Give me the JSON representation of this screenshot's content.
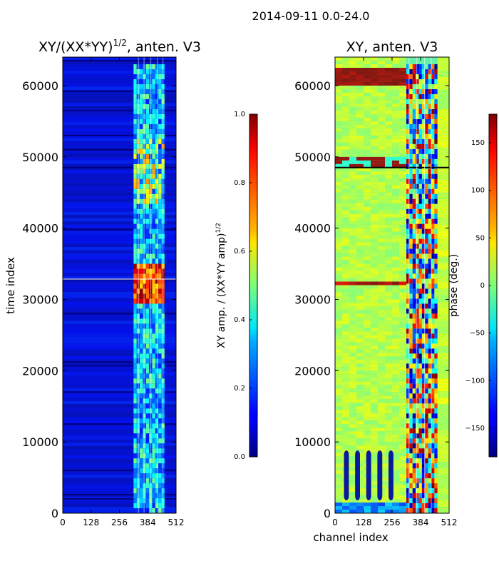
{
  "figure_title": "2014-09-11 0.0-24.0",
  "chart_data": [
    {
      "type": "heatmap",
      "title": "XY/(XX*YY)",
      "title_exponent": "1/2",
      "title_suffix": ", anten. V3",
      "xlabel": "",
      "ylabel": "time index",
      "xlim": [
        0,
        512
      ],
      "ylim": [
        0,
        64000
      ],
      "x_ticks": [
        "0",
        "128",
        "256",
        "384",
        "512"
      ],
      "y_ticks": [
        "0",
        "10000",
        "20000",
        "30000",
        "40000",
        "50000",
        "60000"
      ],
      "colormap": "jet",
      "colorbar": {
        "label": "XY amp. / (XX*YY amp)",
        "label_exponent": "1/2",
        "range": [
          0.0,
          1.0
        ],
        "ticks": [
          "0.0",
          "0.2",
          "0.4",
          "0.6",
          "0.8",
          "1.0"
        ]
      },
      "notes": "Mostly dark-blue (~0.05-0.15); bright band for channels ~320-460; hot region (~0.7-1.0) around time 29000-35000 in channels 320-460."
    },
    {
      "type": "heatmap",
      "title": "XY, anten. V3",
      "xlabel": "channel index",
      "ylabel": "",
      "xlim": [
        0,
        512
      ],
      "ylim": [
        0,
        64000
      ],
      "x_ticks": [
        "0",
        "128",
        "256",
        "384",
        "512"
      ],
      "y_ticks": [
        "0",
        "10000",
        "20000",
        "30000",
        "40000",
        "50000",
        "60000"
      ],
      "colormap": "jet",
      "colorbar": {
        "label": "phase (deg.)",
        "range": [
          -180,
          180
        ],
        "ticks": [
          "−150",
          "−100",
          "−50",
          "0",
          "50",
          "100",
          "150"
        ]
      },
      "notes": "Mostly cyan-green phase (~0 to 30 deg); wrapping phase patterns in channels 320-460; red band near time 60000-62000; dark horizontal line at ~48500."
    }
  ]
}
